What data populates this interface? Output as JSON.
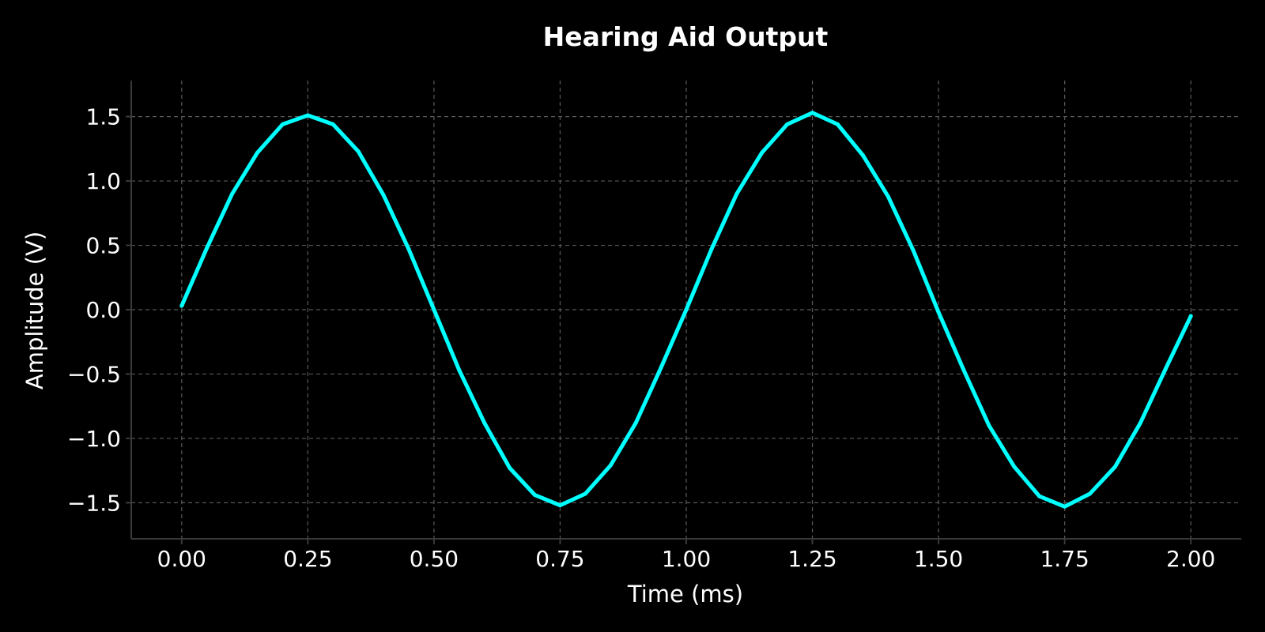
{
  "chart_data": {
    "type": "line",
    "title": "Hearing Aid Output",
    "xlabel": "Time (ms)",
    "ylabel": "Amplitude (V)",
    "xlim": [
      -0.1,
      2.1
    ],
    "ylim": [
      -1.78,
      1.78
    ],
    "xticks": [
      0.0,
      0.25,
      0.5,
      0.75,
      1.0,
      1.25,
      1.5,
      1.75,
      2.0
    ],
    "xtick_labels": [
      "0.00",
      "0.25",
      "0.50",
      "0.75",
      "1.00",
      "1.25",
      "1.50",
      "1.75",
      "2.00"
    ],
    "yticks": [
      1.5,
      1.0,
      0.5,
      0.0,
      -0.5,
      -1.0,
      -1.5
    ],
    "ytick_labels": [
      "1.5",
      "1.0",
      "0.5",
      "0.0",
      "−0.5",
      "−1.0",
      "−1.5"
    ],
    "grid": true,
    "series": [
      {
        "color": "#00ffff",
        "x": [
          0.0,
          0.05,
          0.1,
          0.15,
          0.2,
          0.25,
          0.3,
          0.35,
          0.4,
          0.45,
          0.5,
          0.55,
          0.6,
          0.65,
          0.7,
          0.75,
          0.8,
          0.85,
          0.9,
          0.95,
          1.0,
          1.05,
          1.1,
          1.15,
          1.2,
          1.25,
          1.3,
          1.35,
          1.4,
          1.45,
          1.5,
          1.55,
          1.6,
          1.65,
          1.7,
          1.75,
          1.8,
          1.85,
          1.9,
          1.95,
          2.0
        ],
        "y": [
          0.03,
          0.48,
          0.9,
          1.22,
          1.44,
          1.51,
          1.44,
          1.23,
          0.89,
          0.47,
          0.0,
          -0.47,
          -0.88,
          -1.23,
          -1.44,
          -1.52,
          -1.43,
          -1.21,
          -0.88,
          -0.45,
          0.0,
          0.47,
          0.9,
          1.22,
          1.44,
          1.53,
          1.44,
          1.2,
          0.88,
          0.46,
          -0.02,
          -0.47,
          -0.9,
          -1.22,
          -1.45,
          -1.53,
          -1.43,
          -1.22,
          -0.88,
          -0.46,
          -0.05
        ]
      }
    ]
  }
}
